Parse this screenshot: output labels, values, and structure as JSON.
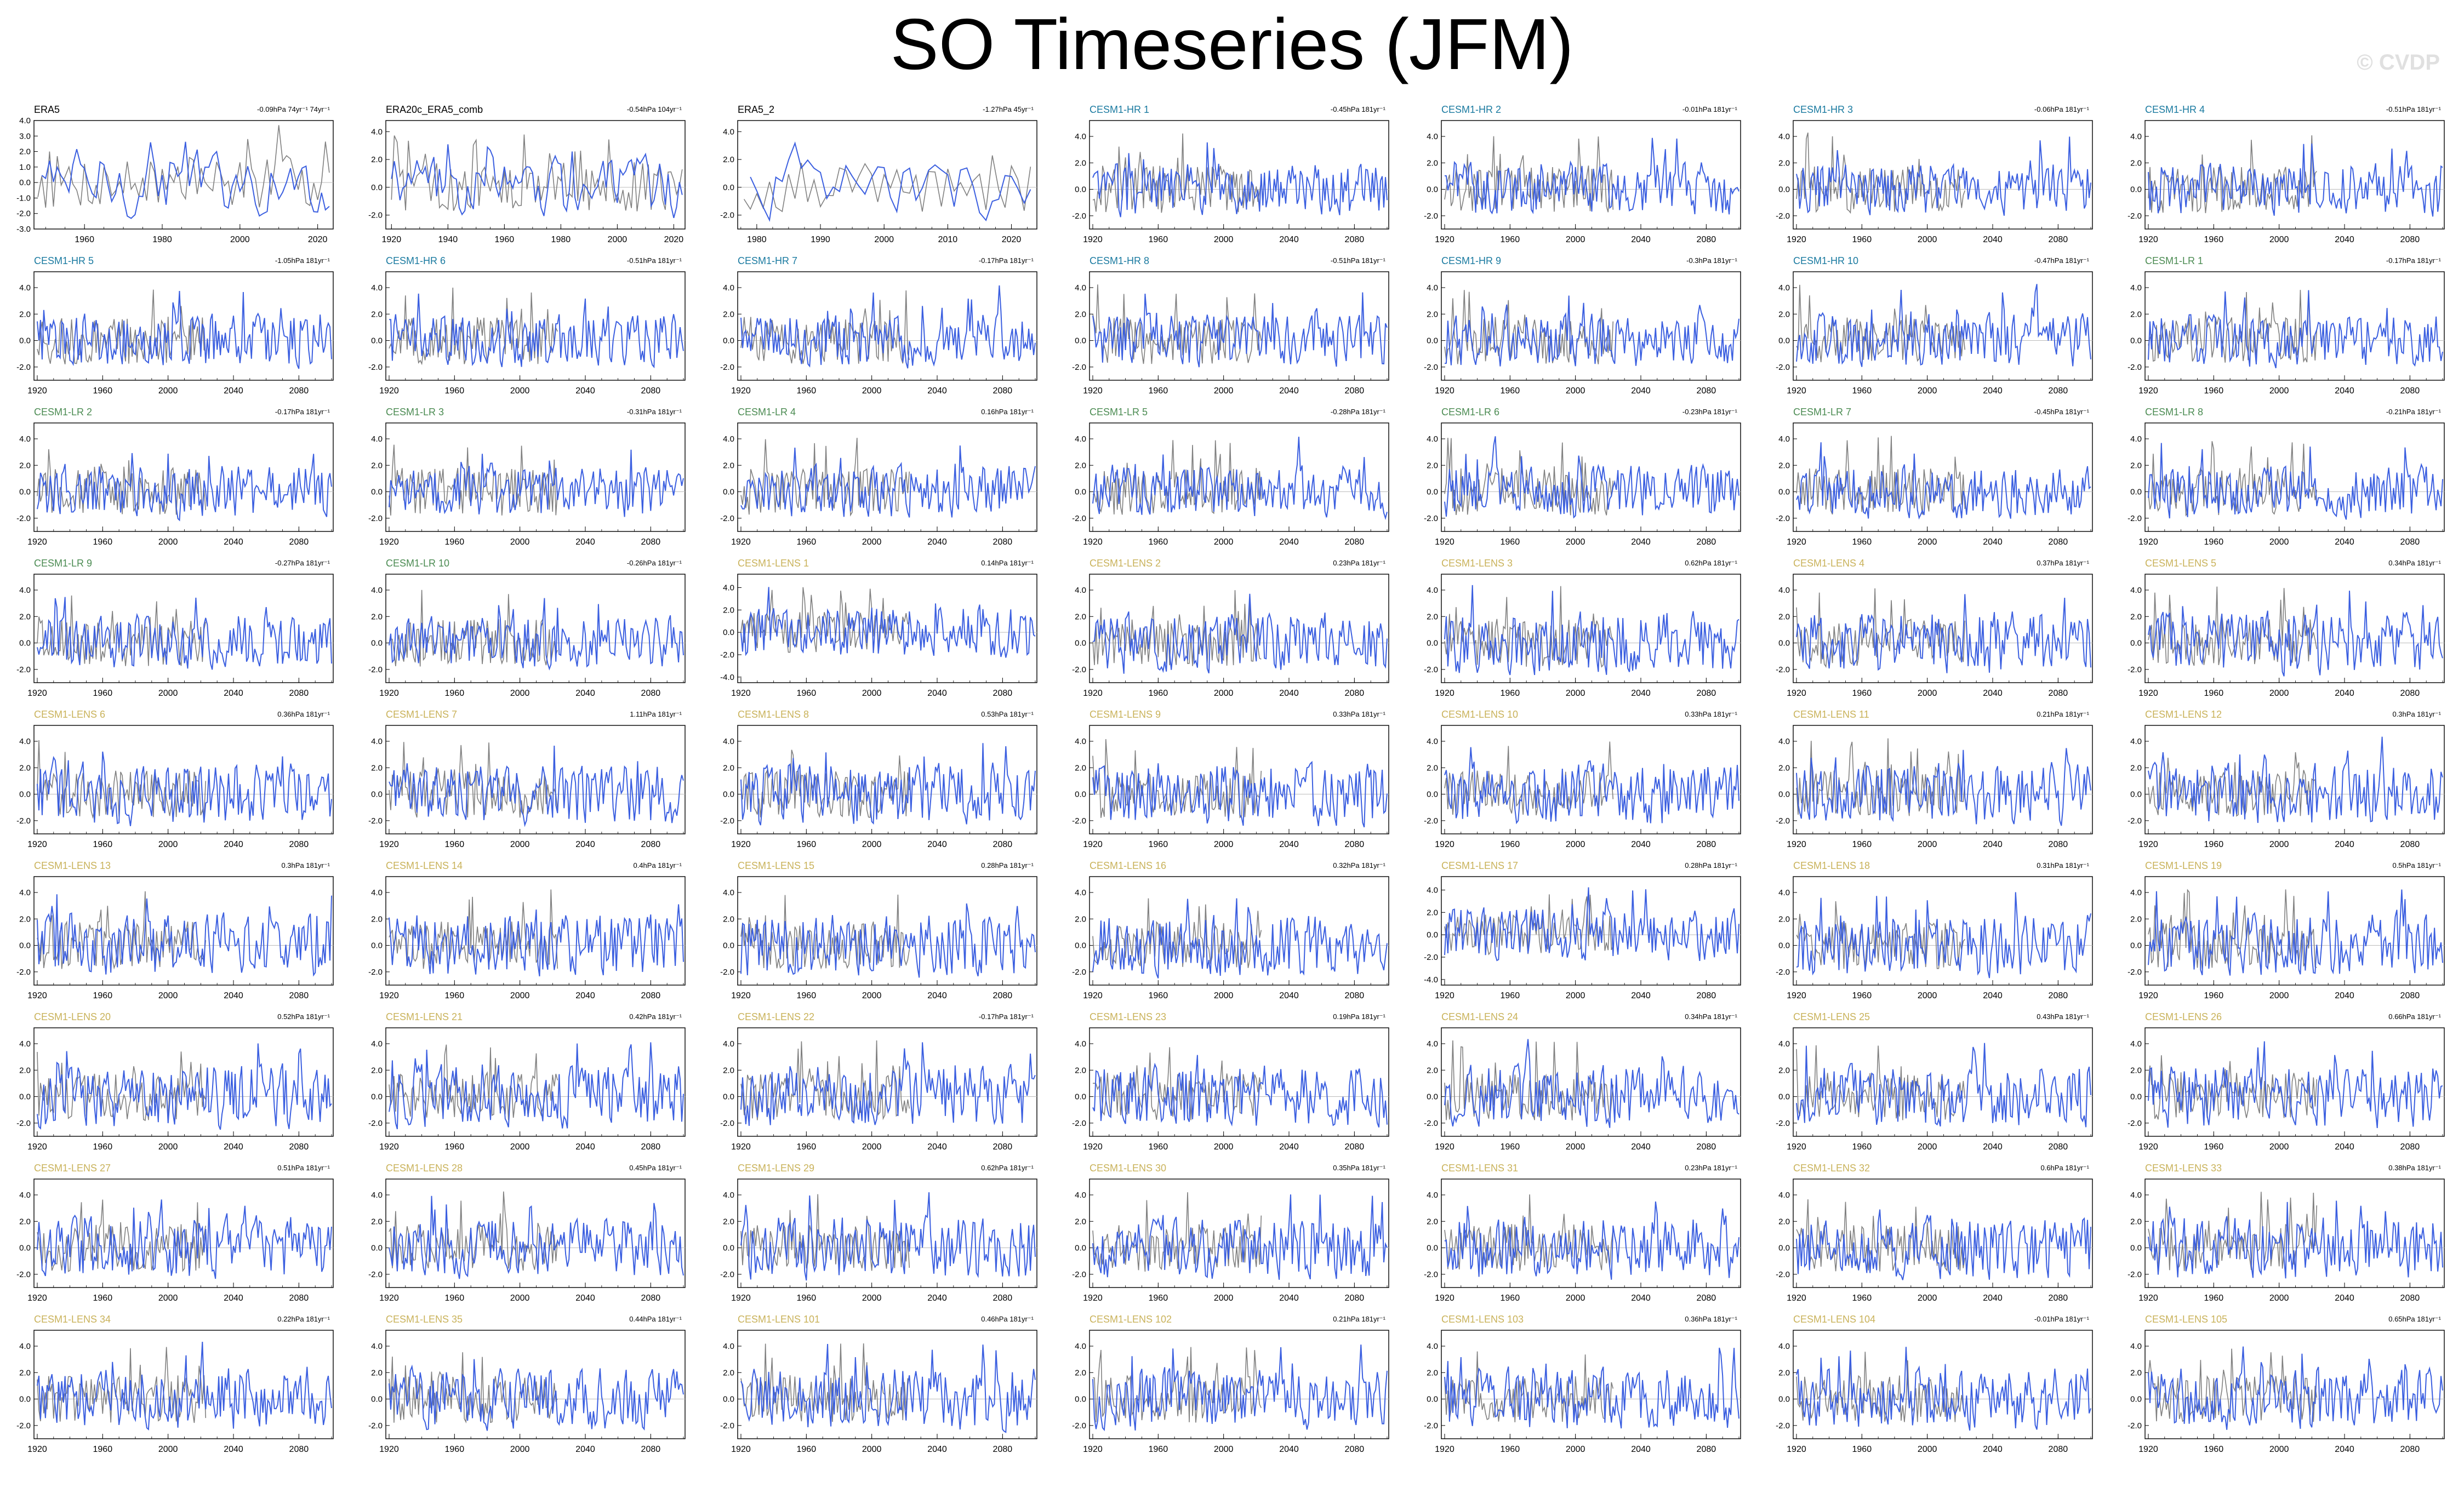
{
  "title": "SO Timeseries (JFM)",
  "watermark": "© CVDP",
  "colors": {
    "obs": "#000000",
    "hr": "#1a7aa0",
    "lr": "#4b8b52",
    "lens": "#c9b25a",
    "line": "#3b5fe0",
    "overlay": "#808080"
  },
  "chart_data": [
    {
      "type": "line",
      "name": "ERA5",
      "group": "obs",
      "trend": "-0.09hPa 74yr⁻¹ 74yr⁻¹",
      "xlim": [
        1947,
        2024
      ],
      "ylim": [
        -3,
        4
      ],
      "yticks": [
        "4.0",
        "3.0",
        "2.0",
        "1.0",
        "0.0",
        "-1.0",
        "-2.0",
        "-3.0"
      ],
      "xticks": [
        "1960",
        "1980",
        "2000",
        "2020"
      ]
    },
    {
      "type": "line",
      "name": "ERA20c_ERA5_comb",
      "group": "obs",
      "trend": "-0.54hPa 104yr⁻¹",
      "xlim": [
        1918,
        2024
      ],
      "ylim": [
        -3,
        4.8
      ],
      "yticks": [
        "4.0",
        "2.0",
        "0.0",
        "-2.0"
      ],
      "xticks": [
        "1920",
        "1940",
        "1960",
        "1980",
        "2000",
        "2020"
      ]
    },
    {
      "type": "line",
      "name": "ERA5_2",
      "group": "obs",
      "trend": "-1.27hPa 45yr⁻¹",
      "xlim": [
        1977,
        2024
      ],
      "ylim": [
        -3,
        4.8
      ],
      "yticks": [
        "4.0",
        "2.0",
        "0.0",
        "-2.0"
      ],
      "xticks": [
        "1980",
        "1990",
        "2000",
        "2010",
        "2020"
      ]
    },
    {
      "type": "line",
      "name": "CESM1-HR 1",
      "group": "hr",
      "trend": "-0.45hPa 181yr⁻¹"
    },
    {
      "type": "line",
      "name": "CESM1-HR 2",
      "group": "hr",
      "trend": "-0.01hPa 181yr⁻¹"
    },
    {
      "type": "line",
      "name": "CESM1-HR 3",
      "group": "hr",
      "trend": "-0.06hPa 181yr⁻¹"
    },
    {
      "type": "line",
      "name": "CESM1-HR 4",
      "group": "hr",
      "trend": "-0.51hPa 181yr⁻¹"
    },
    {
      "type": "line",
      "name": "CESM1-HR 5",
      "group": "hr",
      "trend": "-1.05hPa 181yr⁻¹"
    },
    {
      "type": "line",
      "name": "CESM1-HR 6",
      "group": "hr",
      "trend": "-0.51hPa 181yr⁻¹"
    },
    {
      "type": "line",
      "name": "CESM1-HR 7",
      "group": "hr",
      "trend": "-0.17hPa 181yr⁻¹"
    },
    {
      "type": "line",
      "name": "CESM1-HR 8",
      "group": "hr",
      "trend": "-0.51hPa 181yr⁻¹"
    },
    {
      "type": "line",
      "name": "CESM1-HR 9",
      "group": "hr",
      "trend": "-0.3hPa 181yr⁻¹"
    },
    {
      "type": "line",
      "name": "CESM1-HR 10",
      "group": "hr",
      "trend": "-0.47hPa 181yr⁻¹"
    },
    {
      "type": "line",
      "name": "CESM1-LR 1",
      "group": "lr",
      "trend": "-0.17hPa 181yr⁻¹"
    },
    {
      "type": "line",
      "name": "CESM1-LR 2",
      "group": "lr",
      "trend": "-0.17hPa 181yr⁻¹"
    },
    {
      "type": "line",
      "name": "CESM1-LR 3",
      "group": "lr",
      "trend": "-0.31hPa 181yr⁻¹"
    },
    {
      "type": "line",
      "name": "CESM1-LR 4",
      "group": "lr",
      "trend": "0.16hPa 181yr⁻¹"
    },
    {
      "type": "line",
      "name": "CESM1-LR 5",
      "group": "lr",
      "trend": "-0.28hPa 181yr⁻¹"
    },
    {
      "type": "line",
      "name": "CESM1-LR 6",
      "group": "lr",
      "trend": "-0.23hPa 181yr⁻¹"
    },
    {
      "type": "line",
      "name": "CESM1-LR 7",
      "group": "lr",
      "trend": "-0.45hPa 181yr⁻¹"
    },
    {
      "type": "line",
      "name": "CESM1-LR 8",
      "group": "lr",
      "trend": "-0.21hPa 181yr⁻¹"
    },
    {
      "type": "line",
      "name": "CESM1-LR 9",
      "group": "lr",
      "trend": "-0.27hPa 181yr⁻¹"
    },
    {
      "type": "line",
      "name": "CESM1-LR 10",
      "group": "lr",
      "trend": "-0.26hPa 181yr⁻¹"
    },
    {
      "type": "line",
      "name": "CESM1-LENS 1",
      "group": "lens",
      "trend": "0.14hPa 181yr⁻¹",
      "ylim": [
        -4.5,
        5.2
      ],
      "yticks": [
        "4.0",
        "2.0",
        "0.0",
        "-2.0",
        "-4.0"
      ]
    },
    {
      "type": "line",
      "name": "CESM1-LENS 2",
      "group": "lens",
      "trend": "0.23hPa 181yr⁻¹"
    },
    {
      "type": "line",
      "name": "CESM1-LENS 3",
      "group": "lens",
      "trend": "0.62hPa 181yr⁻¹"
    },
    {
      "type": "line",
      "name": "CESM1-LENS 4",
      "group": "lens",
      "trend": "0.37hPa 181yr⁻¹"
    },
    {
      "type": "line",
      "name": "CESM1-LENS 5",
      "group": "lens",
      "trend": "0.34hPa 181yr⁻¹"
    },
    {
      "type": "line",
      "name": "CESM1-LENS 6",
      "group": "lens",
      "trend": "0.36hPa 181yr⁻¹"
    },
    {
      "type": "line",
      "name": "CESM1-LENS 7",
      "group": "lens",
      "trend": "1.11hPa 181yr⁻¹"
    },
    {
      "type": "line",
      "name": "CESM1-LENS 8",
      "group": "lens",
      "trend": "0.53hPa 181yr⁻¹"
    },
    {
      "type": "line",
      "name": "CESM1-LENS 9",
      "group": "lens",
      "trend": "0.33hPa 181yr⁻¹"
    },
    {
      "type": "line",
      "name": "CESM1-LENS 10",
      "group": "lens",
      "trend": "0.33hPa 181yr⁻¹"
    },
    {
      "type": "line",
      "name": "CESM1-LENS 11",
      "group": "lens",
      "trend": "0.21hPa 181yr⁻¹"
    },
    {
      "type": "line",
      "name": "CESM1-LENS 12",
      "group": "lens",
      "trend": "0.3hPa 181yr⁻¹"
    },
    {
      "type": "line",
      "name": "CESM1-LENS 13",
      "group": "lens",
      "trend": "0.3hPa 181yr⁻¹"
    },
    {
      "type": "line",
      "name": "CESM1-LENS 14",
      "group": "lens",
      "trend": "0.4hPa 181yr⁻¹"
    },
    {
      "type": "line",
      "name": "CESM1-LENS 15",
      "group": "lens",
      "trend": "0.28hPa 181yr⁻¹"
    },
    {
      "type": "line",
      "name": "CESM1-LENS 16",
      "group": "lens",
      "trend": "0.32hPa 181yr⁻¹"
    },
    {
      "type": "line",
      "name": "CESM1-LENS 17",
      "group": "lens",
      "trend": "0.28hPa 181yr⁻¹",
      "ylim": [
        -4.5,
        5.2
      ],
      "yticks": [
        "4.0",
        "2.0",
        "0.0",
        "-2.0",
        "-4.0"
      ]
    },
    {
      "type": "line",
      "name": "CESM1-LENS 18",
      "group": "lens",
      "trend": "0.31hPa 181yr⁻¹"
    },
    {
      "type": "line",
      "name": "CESM1-LENS 19",
      "group": "lens",
      "trend": "0.5hPa 181yr⁻¹"
    },
    {
      "type": "line",
      "name": "CESM1-LENS 20",
      "group": "lens",
      "trend": "0.52hPa 181yr⁻¹"
    },
    {
      "type": "line",
      "name": "CESM1-LENS 21",
      "group": "lens",
      "trend": "0.42hPa 181yr⁻¹"
    },
    {
      "type": "line",
      "name": "CESM1-LENS 22",
      "group": "lens",
      "trend": "-0.17hPa 181yr⁻¹"
    },
    {
      "type": "line",
      "name": "CESM1-LENS 23",
      "group": "lens",
      "trend": "0.19hPa 181yr⁻¹"
    },
    {
      "type": "line",
      "name": "CESM1-LENS 24",
      "group": "lens",
      "trend": "0.34hPa 181yr⁻¹"
    },
    {
      "type": "line",
      "name": "CESM1-LENS 25",
      "group": "lens",
      "trend": "0.43hPa 181yr⁻¹"
    },
    {
      "type": "line",
      "name": "CESM1-LENS 26",
      "group": "lens",
      "trend": "0.66hPa 181yr⁻¹"
    },
    {
      "type": "line",
      "name": "CESM1-LENS 27",
      "group": "lens",
      "trend": "0.51hPa 181yr⁻¹"
    },
    {
      "type": "line",
      "name": "CESM1-LENS 28",
      "group": "lens",
      "trend": "0.45hPa 181yr⁻¹"
    },
    {
      "type": "line",
      "name": "CESM1-LENS 29",
      "group": "lens",
      "trend": "0.62hPa 181yr⁻¹"
    },
    {
      "type": "line",
      "name": "CESM1-LENS 30",
      "group": "lens",
      "trend": "0.35hPa 181yr⁻¹"
    },
    {
      "type": "line",
      "name": "CESM1-LENS 31",
      "group": "lens",
      "trend": "0.23hPa 181yr⁻¹"
    },
    {
      "type": "line",
      "name": "CESM1-LENS 32",
      "group": "lens",
      "trend": "0.6hPa 181yr⁻¹"
    },
    {
      "type": "line",
      "name": "CESM1-LENS 33",
      "group": "lens",
      "trend": "0.38hPa 181yr⁻¹"
    },
    {
      "type": "line",
      "name": "CESM1-LENS 34",
      "group": "lens",
      "trend": "0.22hPa 181yr⁻¹"
    },
    {
      "type": "line",
      "name": "CESM1-LENS 35",
      "group": "lens",
      "trend": "0.44hPa 181yr⁻¹"
    },
    {
      "type": "line",
      "name": "CESM1-LENS 101",
      "group": "lens",
      "trend": "0.46hPa 181yr⁻¹"
    },
    {
      "type": "line",
      "name": "CESM1-LENS 102",
      "group": "lens",
      "trend": "0.21hPa 181yr⁻¹"
    },
    {
      "type": "line",
      "name": "CESM1-LENS 103",
      "group": "lens",
      "trend": "0.36hPa 181yr⁻¹"
    },
    {
      "type": "line",
      "name": "CESM1-LENS 104",
      "group": "lens",
      "trend": "-0.01hPa 181yr⁻¹"
    },
    {
      "type": "line",
      "name": "CESM1-LENS 105",
      "group": "lens",
      "trend": "0.65hPa 181yr⁻¹"
    }
  ],
  "model_defaults": {
    "xlim": [
      1918,
      2101
    ],
    "ylim": [
      -3,
      5.2
    ],
    "yticks": [
      "4.0",
      "2.0",
      "0.0",
      "-2.0"
    ],
    "xticks": [
      "1920",
      "1960",
      "2000",
      "2040",
      "2080"
    ]
  }
}
